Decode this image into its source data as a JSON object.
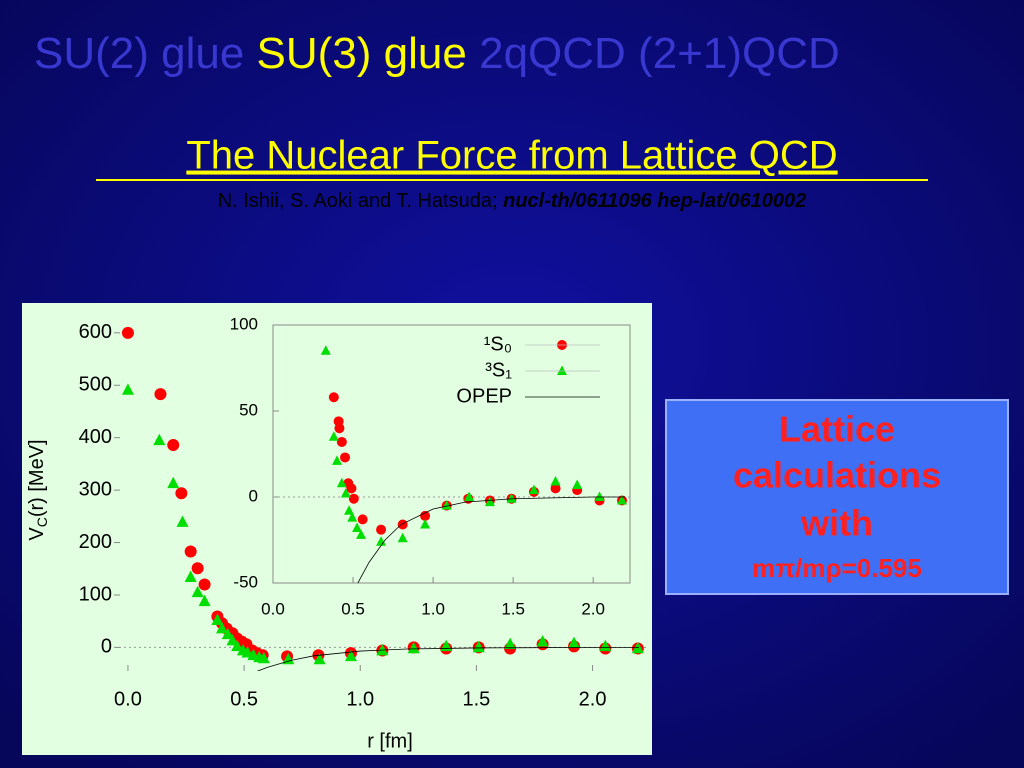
{
  "header": {
    "parts": [
      "SU(2) glue",
      "SU(3) glue",
      "2qQCD (2+1)QCD"
    ],
    "title": "The Nuclear Force from Lattice QCD",
    "authors": "N. Ishii, S. Aoki and  T. Hatsuda;",
    "refs": "nucl-th/0611096 hep-lat/0610002"
  },
  "note": {
    "lines": [
      "Lattice",
      "calculations",
      "with",
      "mπ/mρ=0.595"
    ]
  },
  "chart_data": [
    {
      "type": "scatter",
      "xlabel": "r [fm]",
      "ylabel": {
        "main": "V",
        "sub": "C",
        "rest": "(r) [MeV]"
      },
      "xlim": [
        -0.06,
        2.23
      ],
      "ylim": [
        -45,
        655
      ],
      "xticks": [
        {
          "value": 0,
          "label": "0.0"
        },
        {
          "value": 0.5,
          "label": "0.5"
        },
        {
          "value": 1,
          "label": "1.0"
        },
        {
          "value": 1.5,
          "label": "1.5"
        },
        {
          "value": 2,
          "label": "2.0"
        }
      ],
      "yticks": [
        0,
        100,
        200,
        300,
        400,
        500,
        600
      ],
      "zero_line": true,
      "series": [
        {
          "name": "¹S₀",
          "color": "#ff0000",
          "marker": "circle",
          "x": [
            0.0,
            0.14,
            0.195,
            0.23,
            0.27,
            0.3,
            0.33,
            0.385,
            0.405,
            0.425,
            0.45,
            0.47,
            0.49,
            0.51,
            0.535,
            0.555,
            0.58,
            0.685,
            0.82,
            0.96,
            1.095,
            1.23,
            1.37,
            1.51,
            1.645,
            1.785,
            1.92,
            2.055,
            2.195
          ],
          "values": [
            600,
            483,
            386,
            294,
            183,
            151,
            120,
            59,
            46,
            36,
            27,
            17,
            11,
            6,
            -6,
            -11,
            -15,
            -17,
            -15,
            -11,
            -6,
            0,
            -2,
            0,
            -2,
            6,
            2,
            -2,
            -2
          ]
        },
        {
          "name": "³S₁",
          "color": "#00dd00",
          "marker": "triangle",
          "x": [
            0.0,
            0.135,
            0.195,
            0.235,
            0.27,
            0.3,
            0.33,
            0.385,
            0.405,
            0.43,
            0.45,
            0.47,
            0.495,
            0.515,
            0.54,
            0.565,
            0.585,
            0.69,
            0.825,
            0.96,
            1.095,
            1.23,
            1.37,
            1.51,
            1.645,
            1.785,
            1.92,
            2.055,
            2.195
          ],
          "values": [
            491,
            395,
            313,
            239,
            134,
            105,
            88,
            52,
            36,
            25,
            13,
            2,
            -6,
            -10,
            -15,
            -19,
            -21,
            -23,
            -23,
            -17,
            -6,
            -2,
            2,
            0,
            6,
            11,
            8,
            2,
            -2
          ]
        },
        {
          "name": "OPEP",
          "color": "#000000",
          "marker": "line",
          "x": [
            0.53,
            0.6,
            0.7,
            0.8,
            1.0,
            1.2,
            1.5,
            2.0,
            2.2
          ],
          "values": [
            -50,
            -38,
            -25,
            -16,
            -7,
            -3,
            -1,
            0,
            0
          ]
        }
      ]
    },
    {
      "type": "scatter",
      "frame": true,
      "legend": "upper right",
      "xlim": [
        0,
        2.23
      ],
      "ylim": [
        -50,
        100
      ],
      "xticks": [
        {
          "value": 0,
          "label": "0.0"
        },
        {
          "value": 0.5,
          "label": "0.5"
        },
        {
          "value": 1,
          "label": "1.0"
        },
        {
          "value": 1.5,
          "label": "1.5"
        },
        {
          "value": 2,
          "label": "2.0"
        }
      ],
      "yticks": [
        -50,
        0,
        50,
        100
      ],
      "zero_line": true,
      "series": [
        {
          "name": "¹S₀",
          "color": "#ff0000",
          "marker": "circle",
          "x": [
            0.38,
            0.41,
            0.415,
            0.43,
            0.45,
            0.47,
            0.49,
            0.505,
            0.56,
            0.675,
            0.81,
            0.95,
            1.085,
            1.22,
            1.355,
            1.49,
            1.63,
            1.765,
            1.9,
            2.04,
            2.18
          ],
          "values": [
            58,
            44,
            40,
            32,
            23,
            8,
            5,
            -1,
            -13,
            -19,
            -16,
            -11,
            -5,
            -1,
            -2,
            -1,
            3,
            5,
            4,
            -2,
            -2
          ]
        },
        {
          "name": "³S₁",
          "color": "#00dd00",
          "marker": "triangle",
          "x": [
            0.33,
            0.38,
            0.4,
            0.43,
            0.455,
            0.475,
            0.495,
            0.525,
            0.55,
            0.675,
            0.81,
            0.95,
            1.085,
            1.225,
            1.355,
            1.49,
            1.63,
            1.765,
            1.9,
            2.04,
            2.18
          ],
          "values": [
            85,
            35,
            21,
            8,
            2,
            -8,
            -12,
            -18,
            -22,
            -26,
            -24,
            -16,
            -5,
            0,
            -3,
            -1,
            4,
            9,
            7,
            0,
            -2
          ]
        },
        {
          "name": "OPEP",
          "color": "#000000",
          "marker": "line",
          "x": [
            0.53,
            0.6,
            0.7,
            0.8,
            1.0,
            1.2,
            1.5,
            2.0,
            2.2
          ],
          "values": [
            -50,
            -38,
            -25,
            -16,
            -7,
            -3,
            -1,
            0,
            0
          ]
        }
      ]
    }
  ]
}
